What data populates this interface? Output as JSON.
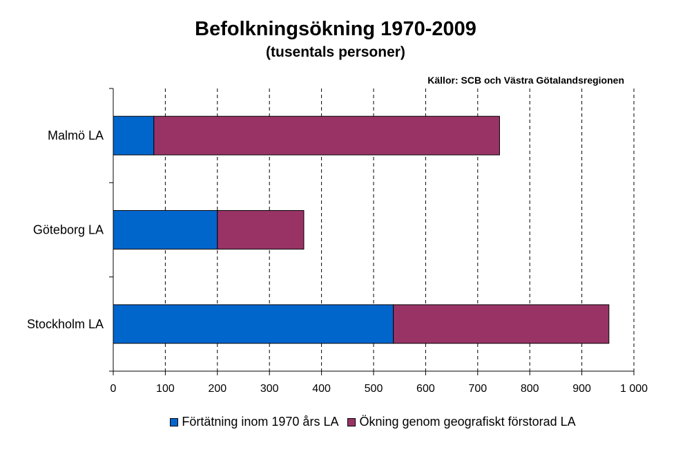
{
  "chart_data": {
    "type": "bar",
    "orientation": "horizontal",
    "stacked": true,
    "title": "Befolkningsökning 1970-2009",
    "subtitle": "(tusentals personer)",
    "source_note": "Källor: SCB och Västra Götalandsregionen",
    "categories": [
      "Malmö LA",
      "Göteborg LA",
      "Stockholm LA"
    ],
    "series": [
      {
        "name": "Förtätning inom 1970 års LA",
        "color": "#0066CC",
        "values": [
          78,
          200,
          538
        ]
      },
      {
        "name": "Ökning genom geografiskt förstorad LA",
        "color": "#993366",
        "values": [
          664,
          166,
          414
        ]
      }
    ],
    "xlim": [
      0,
      1000
    ],
    "xticks": [
      0,
      100,
      200,
      300,
      400,
      500,
      600,
      700,
      800,
      900,
      1000
    ],
    "xtick_labels": [
      "0",
      "100",
      "200",
      "300",
      "400",
      "500",
      "600",
      "700",
      "800",
      "900",
      "1 000"
    ],
    "grid": "vertical dashed",
    "legend_position": "bottom"
  }
}
